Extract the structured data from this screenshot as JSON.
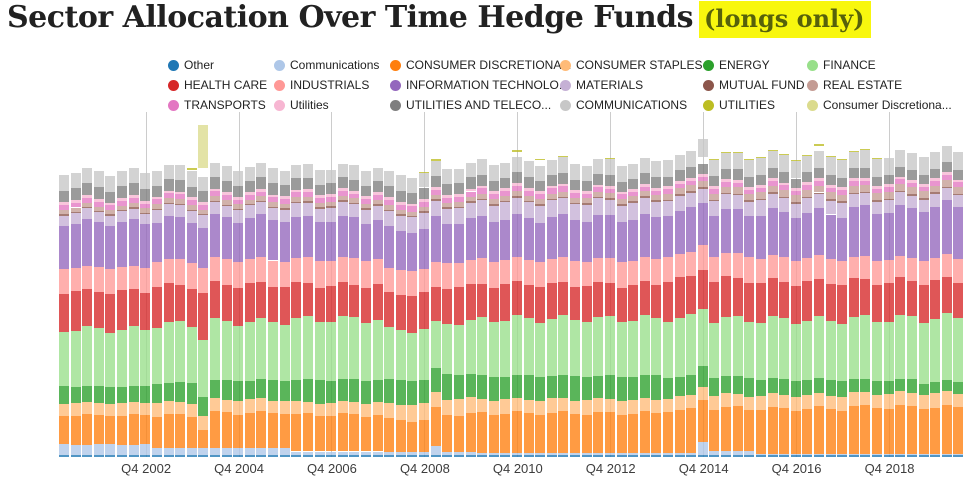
{
  "title": {
    "main": "Sector Allocation Over Time Hedge Funds",
    "highlight": "(longs only)",
    "highlight_bg": "#f8f70e",
    "highlight_text_color": "#56610b"
  },
  "legend": {
    "columns": 6
  },
  "chart_data": {
    "type": "bar",
    "subtype": "stacked-percent-columns",
    "title": "Sector Allocation Over Time Hedge Funds (longs only)",
    "xlabel": "",
    "ylabel": "",
    "ylim": [
      0,
      100
    ],
    "grid": "vertical-only",
    "legend_position": "top",
    "bar_count": 78,
    "first_bar_quarter": "Q1 2001",
    "last_bar_quarter": "Q2 2020",
    "bar_opacity": 0.78,
    "x_axis": {
      "tick_labels": [
        "Q4 2002",
        "Q4 2004",
        "Q4 2006",
        "Q4 2008",
        "Q4 2010",
        "Q4 2012",
        "Q4 2014",
        "Q4 2016",
        "Q4 2018"
      ],
      "tick_bar_indices": [
        7,
        15,
        23,
        31,
        39,
        47,
        55,
        63,
        71
      ]
    },
    "encoding": "each series gives run-length pairs [count,value] over the 78 quarterly bars; values are percent of portfolio; series listed bottom-to-top of stack",
    "series": [
      {
        "name": "Other",
        "color": "#1f77b4",
        "in_legend": true,
        "rle": [
          [
            78,
            0.6
          ]
        ]
      },
      {
        "name": "Communications",
        "color": "#aec7e8",
        "in_legend": true,
        "rle": [
          [
            8,
            3.0
          ],
          [
            12,
            2.0
          ],
          [
            8,
            1.0
          ],
          [
            4,
            0.8
          ],
          [
            1,
            2.5
          ],
          [
            3,
            0.8
          ],
          [
            16,
            0.5
          ],
          [
            3,
            0.6
          ],
          [
            1,
            3.5
          ],
          [
            4,
            1.2
          ],
          [
            8,
            0.4
          ],
          [
            10,
            0.3
          ]
        ]
      },
      {
        "name": "CONSUMER DISCRETIONA...",
        "color": "#ff7f0e",
        "in_legend": true,
        "rle": [
          [
            8,
            8.5
          ],
          [
            4,
            9.5
          ],
          [
            1,
            5.5
          ],
          [
            7,
            10.2
          ],
          [
            8,
            10.6
          ],
          [
            4,
            9.3
          ],
          [
            1,
            10.8
          ],
          [
            3,
            11.0
          ],
          [
            16,
            11.6
          ],
          [
            8,
            12.4
          ],
          [
            8,
            13.0
          ],
          [
            10,
            13.6
          ]
        ]
      },
      {
        "name": "CONSUMER STAPLES",
        "color": "#ffbb78",
        "in_legend": true,
        "rle": [
          [
            8,
            3.6
          ],
          [
            12,
            3.8
          ],
          [
            8,
            3.6
          ],
          [
            8,
            4.6
          ],
          [
            16,
            4.0
          ],
          [
            8,
            3.8
          ],
          [
            8,
            3.9
          ],
          [
            10,
            4.0
          ]
        ]
      },
      {
        "name": "ENERGY",
        "color": "#2ca02c",
        "in_legend": true,
        "rle": [
          [
            8,
            4.8
          ],
          [
            12,
            5.6
          ],
          [
            8,
            6.6
          ],
          [
            8,
            7.0
          ],
          [
            16,
            6.8
          ],
          [
            4,
            6.0
          ],
          [
            4,
            5.2
          ],
          [
            8,
            4.6
          ],
          [
            6,
            3.8
          ],
          [
            4,
            3.2
          ]
        ]
      },
      {
        "name": "FINANCE",
        "color": "#98df8a",
        "in_legend": true,
        "rle": [
          [
            8,
            16.5
          ],
          [
            12,
            17.0
          ],
          [
            8,
            17.5
          ],
          [
            4,
            14.5
          ],
          [
            1,
            13.0
          ],
          [
            3,
            15.0
          ],
          [
            16,
            16.5
          ],
          [
            8,
            16.8
          ],
          [
            8,
            17.2
          ],
          [
            6,
            17.8
          ],
          [
            4,
            18.6
          ]
        ]
      },
      {
        "name": "HEALTH CARE",
        "color": "#d62728",
        "in_legend": true,
        "rle": [
          [
            8,
            11.0
          ],
          [
            4,
            11.2
          ],
          [
            1,
            13.0
          ],
          [
            7,
            10.8
          ],
          [
            8,
            10.0
          ],
          [
            8,
            10.5
          ],
          [
            16,
            10.0
          ],
          [
            8,
            11.5
          ],
          [
            8,
            11.0
          ],
          [
            10,
            10.8
          ]
        ]
      },
      {
        "name": "INDUSTRIALS",
        "color": "#ff9896",
        "in_legend": true,
        "rle": [
          [
            8,
            7.0
          ],
          [
            12,
            7.2
          ],
          [
            8,
            7.5
          ],
          [
            8,
            7.0
          ],
          [
            16,
            7.2
          ],
          [
            8,
            7.0
          ],
          [
            8,
            7.0
          ],
          [
            10,
            6.6
          ]
        ]
      },
      {
        "name": "INFORMATION TECHNOLO...",
        "color": "#9467bd",
        "in_legend": true,
        "rle": [
          [
            8,
            13.0
          ],
          [
            12,
            12.0
          ],
          [
            8,
            11.5
          ],
          [
            4,
            11.5
          ],
          [
            1,
            13.0
          ],
          [
            3,
            11.8
          ],
          [
            16,
            12.0
          ],
          [
            8,
            12.5
          ],
          [
            8,
            13.0
          ],
          [
            6,
            14.2
          ],
          [
            4,
            15.0
          ]
        ]
      },
      {
        "name": "MATERIALS",
        "color": "#c5b0d5",
        "in_legend": true,
        "rle": [
          [
            8,
            3.0
          ],
          [
            12,
            3.5
          ],
          [
            8,
            4.0
          ],
          [
            8,
            4.5
          ],
          [
            16,
            4.8
          ],
          [
            8,
            4.2
          ],
          [
            8,
            4.2
          ],
          [
            10,
            3.6
          ]
        ]
      },
      {
        "name": "MUTUAL FUND",
        "color": "#8c564b",
        "in_legend": true,
        "rle": [
          [
            78,
            0.4
          ]
        ]
      },
      {
        "name": "REAL ESTATE",
        "color": "#c49c94",
        "in_legend": true,
        "rle": [
          [
            8,
            1.2
          ],
          [
            12,
            1.3
          ],
          [
            8,
            1.3
          ],
          [
            8,
            1.3
          ],
          [
            16,
            1.5
          ],
          [
            8,
            1.8
          ],
          [
            8,
            2.0
          ],
          [
            10,
            2.0
          ]
        ]
      },
      {
        "name": "TRANSPORTS",
        "color": "#e377c2",
        "in_legend": true,
        "rle": [
          [
            28,
            1.4
          ],
          [
            16,
            1.5
          ],
          [
            34,
            1.3
          ]
        ]
      },
      {
        "name": "Utilities",
        "color": "#f7b6d2",
        "in_legend": true,
        "rle": [
          [
            78,
            0.8
          ]
        ]
      },
      {
        "name": "UTILITIES AND TELECO...",
        "color": "#7f7f7f",
        "in_legend": true,
        "rle": [
          [
            8,
            3.4
          ],
          [
            12,
            3.3
          ],
          [
            8,
            3.2
          ],
          [
            8,
            3.2
          ],
          [
            16,
            3.0
          ],
          [
            8,
            3.0
          ],
          [
            8,
            2.9
          ],
          [
            10,
            2.8
          ]
        ]
      },
      {
        "name": "gap-spacer-low",
        "color": "transparent",
        "in_legend": false,
        "rle": [
          [
            55,
            0
          ],
          [
            1,
            2.0
          ],
          [
            22,
            0
          ]
        ]
      },
      {
        "name": "COMMUNICATIONS",
        "color": "#c7c7c7",
        "in_legend": true,
        "rle": [
          [
            8,
            4.5
          ],
          [
            12,
            4.2
          ],
          [
            8,
            4.0
          ],
          [
            8,
            4.3
          ],
          [
            16,
            4.5
          ],
          [
            8,
            4.8
          ],
          [
            8,
            5.0
          ],
          [
            10,
            5.0
          ]
        ]
      },
      {
        "name": "gap-spacer-high",
        "color": "transparent",
        "in_legend": false,
        "rle": [
          [
            11,
            0
          ],
          [
            1,
            0.4
          ],
          [
            1,
            2.5
          ],
          [
            26,
            0
          ],
          [
            1,
            1.5
          ],
          [
            1,
            0
          ],
          [
            1,
            1.5
          ],
          [
            23,
            0
          ],
          [
            1,
            1.5
          ],
          [
            12,
            0
          ]
        ]
      },
      {
        "name": "UTILITIES",
        "color": "#bcbd22",
        "in_legend": true,
        "rle": [
          [
            11,
            0
          ],
          [
            1,
            0.6
          ],
          [
            19,
            0
          ],
          [
            2,
            0.5
          ],
          [
            6,
            0
          ],
          [
            1,
            0.5
          ],
          [
            1,
            0
          ],
          [
            1,
            0.5
          ],
          [
            1,
            0
          ],
          [
            1,
            0.5
          ],
          [
            3,
            0
          ],
          [
            1,
            0.5
          ],
          [
            8,
            0
          ],
          [
            9,
            0.2
          ],
          [
            1,
            0.5
          ],
          [
            5,
            0.2
          ],
          [
            7,
            0
          ]
        ]
      },
      {
        "name": "Consumer Discretiona...",
        "color": "#dbdb8d",
        "in_legend": true,
        "rle": [
          [
            12,
            0
          ],
          [
            1,
            13.0
          ],
          [
            65,
            0
          ]
        ]
      }
    ],
    "legend_order_note": "legend shows the 18 visible series row-major in 3 rows of 6"
  }
}
